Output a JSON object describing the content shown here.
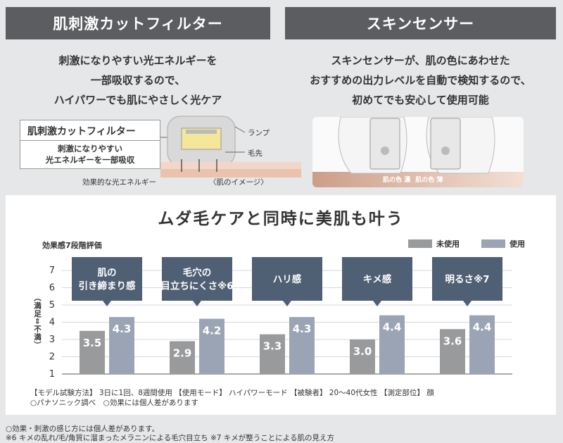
{
  "left": {
    "header": "肌刺激カットフィルター",
    "desc": [
      "刺激になりやすい光エネルギーを",
      "一部吸収するので、",
      "ハイパワーでも肌にやさしく光ケア"
    ],
    "box_title": "肌刺激カットフィルター",
    "box_body": [
      "刺激になりやすい",
      "光エネルギーを一部吸収"
    ],
    "labels": {
      "lamp": "ランプ",
      "hair": "毛先",
      "energy": "効果的な光エネルギー",
      "image_note": "〈肌のイメージ〉"
    }
  },
  "right": {
    "header": "スキンセンサー",
    "desc": [
      "スキンセンサーが、肌の色にあわせた",
      "おすすめの出力レベルを自動で検知するので、",
      "初めてでも安心して使用可能"
    ],
    "skin_dark": "肌の色 濃",
    "skin_light": "肌の色 薄"
  },
  "panel": {
    "title": "ムダ毛ケアと同時に美肌も叶う",
    "subtitle": "効果感7段階評価",
    "ylabel": "（満足⇔不満）",
    "notes": [
      "【モデル試験方法】 3日に1回、8週間使用 【使用モード】 ハイパワーモード 【被験者】 20～40代女性 【測定部位】 顔",
      "○パナソニック調べ　○効果には個人差があります"
    ]
  },
  "footnotes": [
    "○効果・刺激の感じ方には個人差があります。",
    "※6  キメの乱れ/毛/角質に溜まったメラニンによる毛穴目立ち  ※7 キメが整うことによる肌の見え方"
  ],
  "colors": {
    "header_bg": "#5b5d60",
    "unused": "#999a9c",
    "used": "#9ba4b5",
    "callout": "#4f5f74"
  },
  "chart_data": {
    "type": "bar",
    "categories": [
      "肌の\n引き締まり感",
      "毛穴の\n目立ちにくさ※6",
      "ハリ感",
      "キメ感",
      "明るさ※7"
    ],
    "series": [
      {
        "name": "未使用",
        "values": [
          3.5,
          2.9,
          3.3,
          3.0,
          3.6
        ]
      },
      {
        "name": "使用",
        "values": [
          4.3,
          4.2,
          4.3,
          4.4,
          4.4
        ]
      }
    ],
    "value_labels": [
      [
        "3.5",
        "2.9",
        "3.3",
        "3.0",
        "3.6"
      ],
      [
        "4.3",
        "4.2",
        "4.3",
        "4.4",
        "4.4"
      ]
    ],
    "yticks": [
      "1",
      "2",
      "3",
      "4",
      "5",
      "6",
      "7"
    ],
    "ylim": [
      1,
      7
    ],
    "ylabel": "（満足⇔不満）",
    "title": "効果感7段階評価",
    "legend": "top-right"
  }
}
